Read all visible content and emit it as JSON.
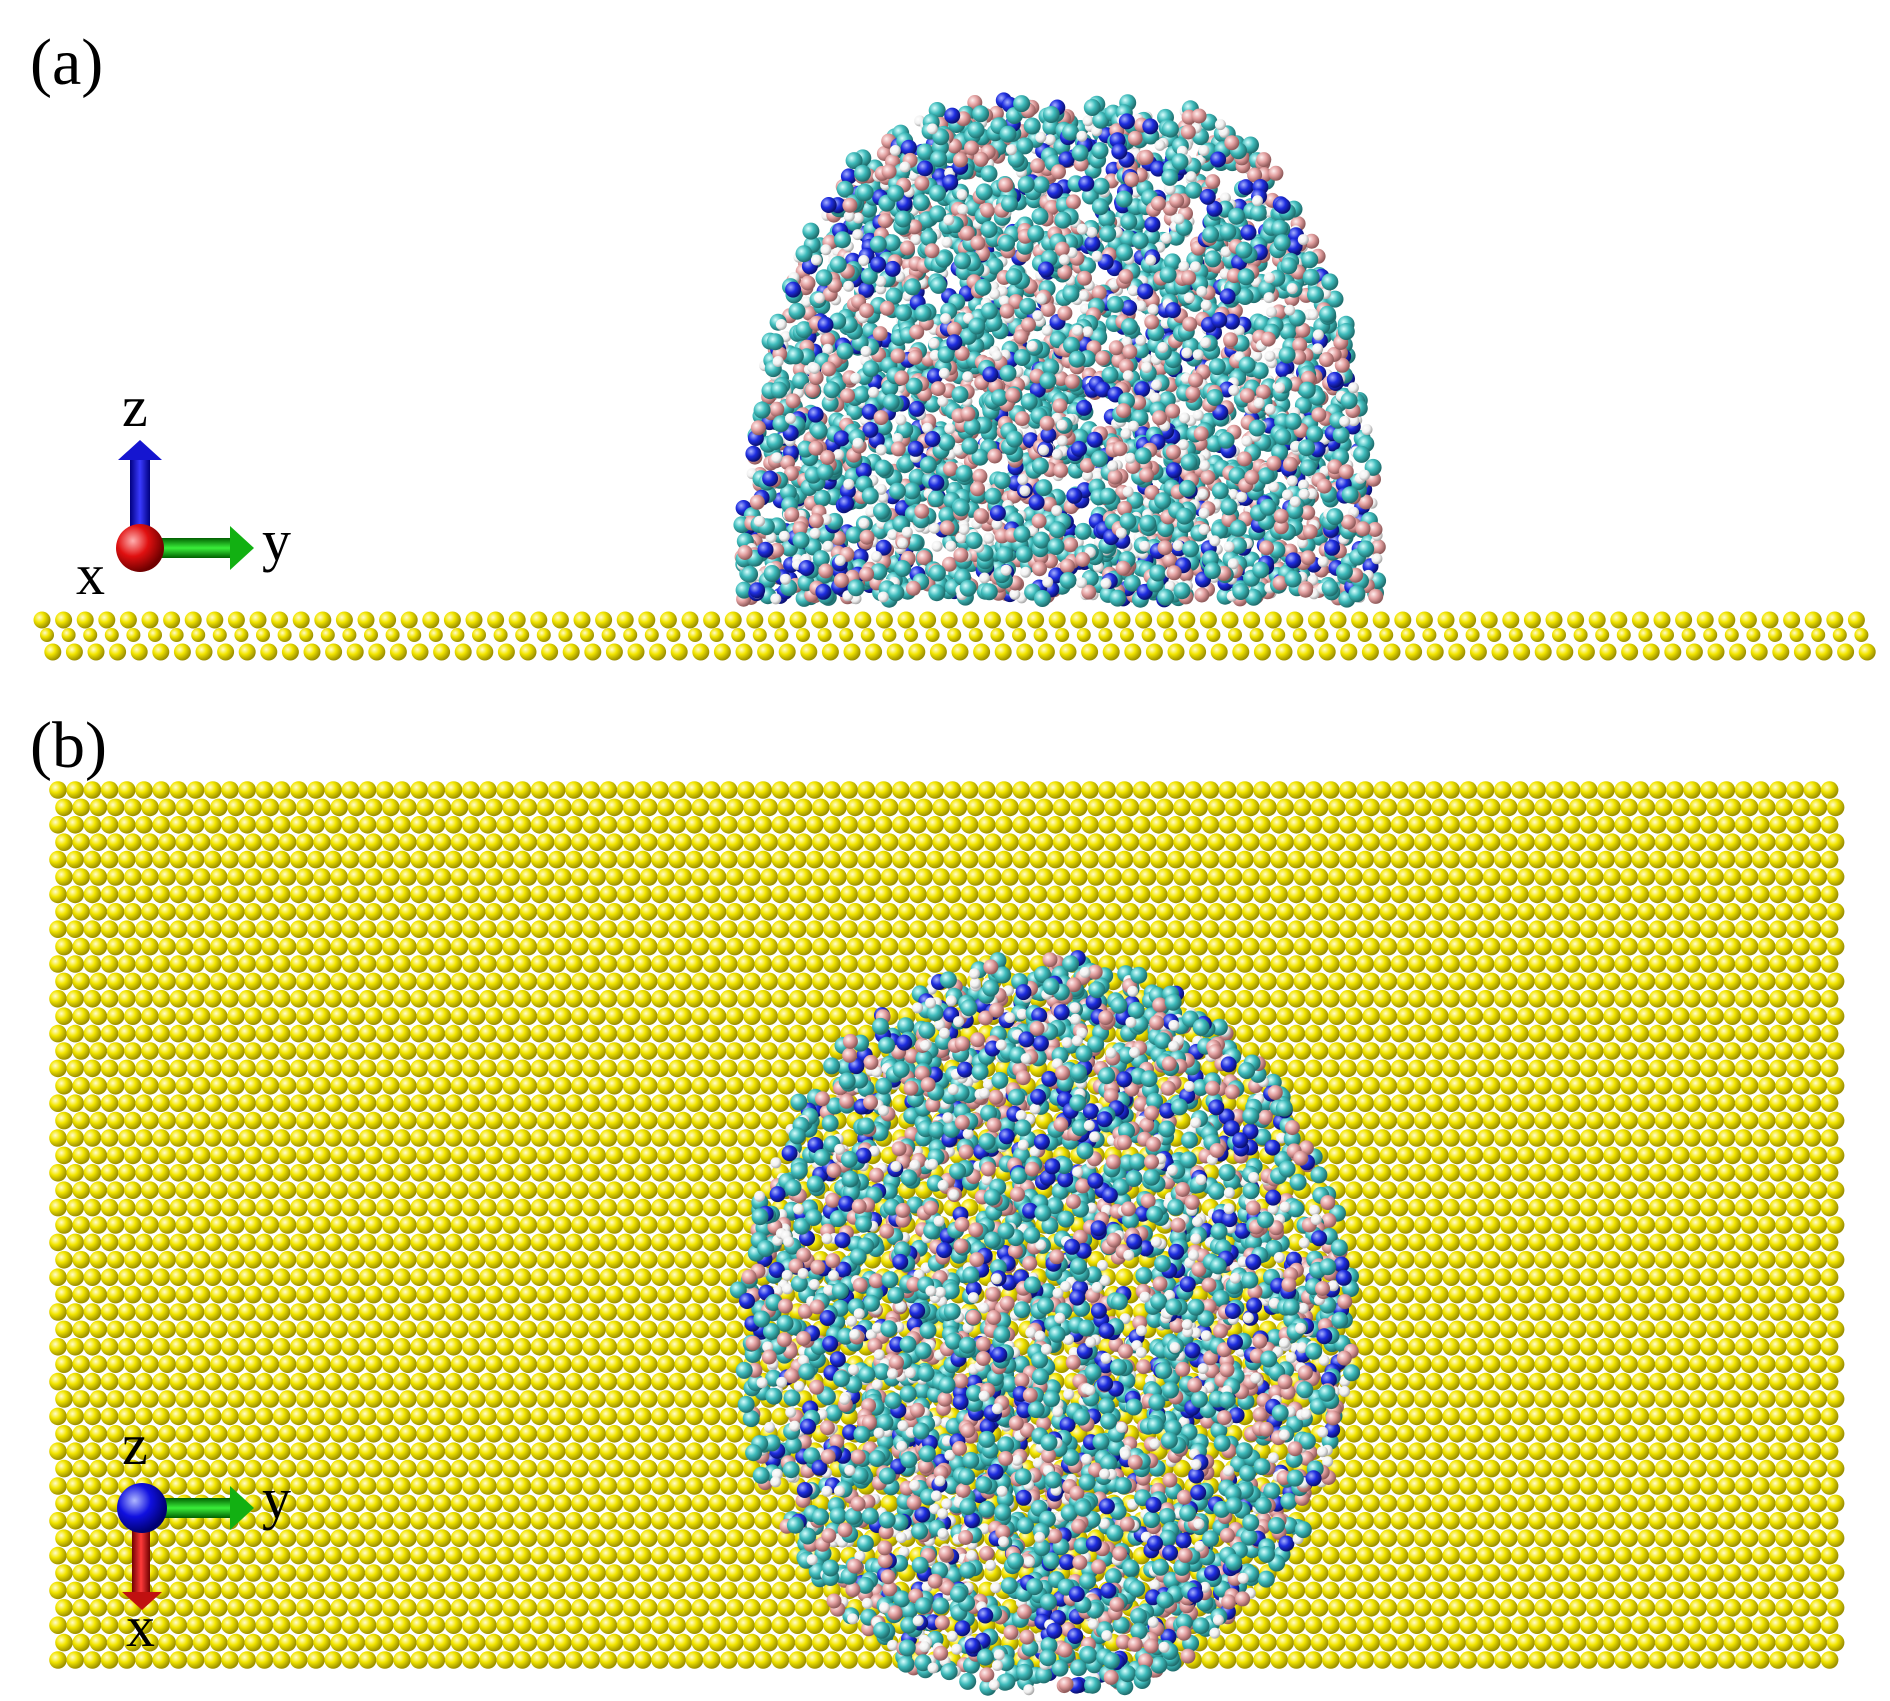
{
  "panels": [
    {
      "id": "a",
      "label": "(a)",
      "view": "side",
      "axes": {
        "up": "z",
        "right": "y",
        "out": "x"
      }
    },
    {
      "id": "b",
      "label": "(b)",
      "view": "top",
      "axes": {
        "out": "z",
        "right": "y",
        "down": "x"
      }
    }
  ],
  "colors": {
    "substrate": "#f2e400",
    "carbon": "#3fbcbc",
    "oxygen": "#e3a0a0",
    "nitrogen": "#1e2ee0",
    "hydrogen": "#f4f4f4",
    "axis_x": "#e01010",
    "axis_y": "#10c010",
    "axis_z": "#1010e0"
  }
}
